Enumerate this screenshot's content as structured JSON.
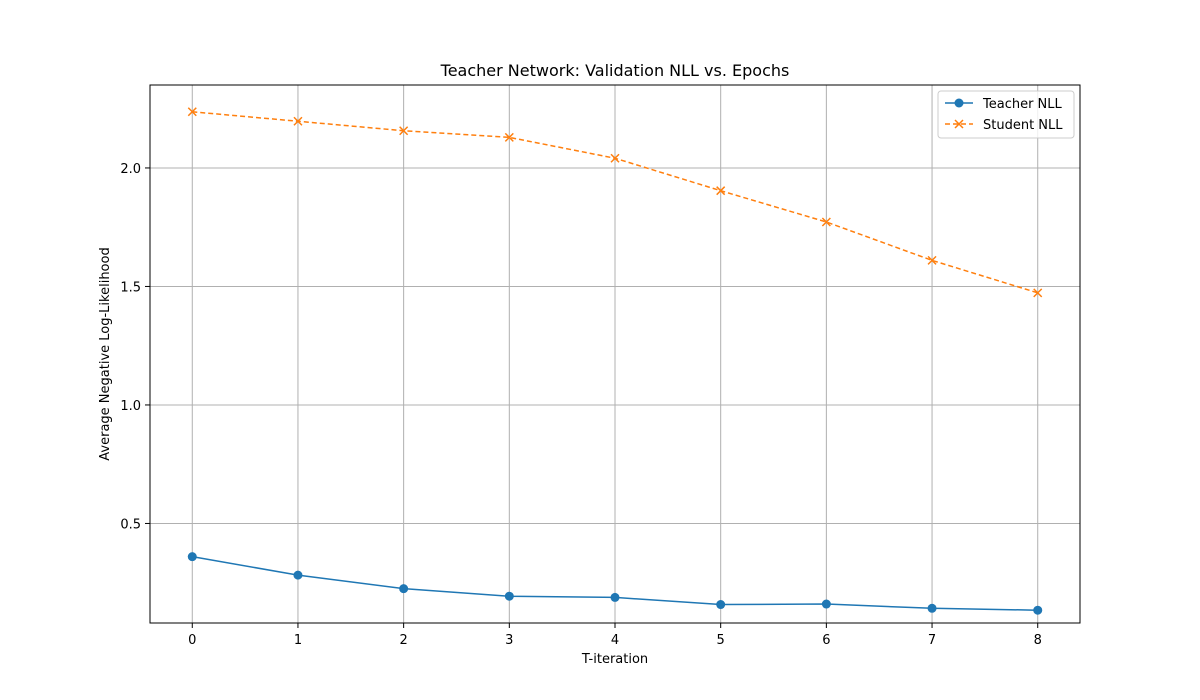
{
  "chart_data": {
    "type": "line",
    "title": "Teacher Network: Validation NLL vs. Epochs",
    "xlabel": "T-iteration",
    "ylabel": "Average Negative Log-Likelihood",
    "x": [
      0,
      1,
      2,
      3,
      4,
      5,
      6,
      7,
      8
    ],
    "xlim": [
      -0.4,
      8.4
    ],
    "ylim": [
      0.08,
      2.35
    ],
    "x_ticks": [
      0,
      1,
      2,
      3,
      4,
      5,
      6,
      7,
      8
    ],
    "y_ticks": [
      0.5,
      1.0,
      1.5,
      2.0
    ],
    "x_tick_labels": [
      "0",
      "1",
      "2",
      "3",
      "4",
      "5",
      "6",
      "7",
      "8"
    ],
    "y_tick_labels": [
      "0.5",
      "1.0",
      "1.5",
      "2.0"
    ],
    "grid": true,
    "legend_position": "top-right",
    "series": [
      {
        "name": "Teacher NLL",
        "color": "#1f77b4",
        "line_style": "solid",
        "marker": "circle",
        "values": [
          0.36,
          0.282,
          0.225,
          0.193,
          0.188,
          0.158,
          0.16,
          0.142,
          0.134
        ]
      },
      {
        "name": "Student NLL",
        "color": "#ff7f0e",
        "line_style": "dashed",
        "marker": "x",
        "values": [
          2.237,
          2.197,
          2.157,
          2.129,
          2.041,
          1.904,
          1.772,
          1.61,
          1.473
        ]
      }
    ]
  }
}
